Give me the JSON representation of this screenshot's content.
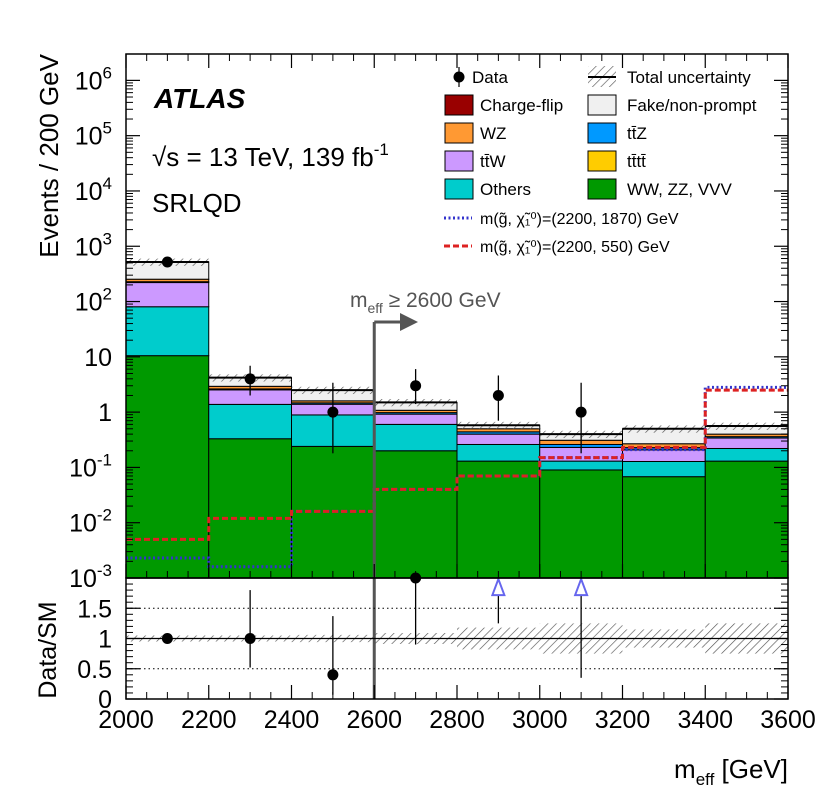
{
  "chart_data": {
    "type": "bar",
    "stacked": true,
    "log_y": true,
    "experiment": "ATLAS",
    "energy_label": "√s = 13 TeV, 139 fb",
    "energy_sup": "-1",
    "region": "SRLQD",
    "xlabel_main": "m",
    "xlabel_sub": "eff",
    "xlabel_unit": " [GeV]",
    "ylabel": "Events / 200 GeV",
    "ratio_ylabel": "Data/SM",
    "bin_edges": [
      2000,
      2200,
      2400,
      2600,
      2800,
      3000,
      3200,
      3400,
      3600
    ],
    "x_ticks": [
      "2000",
      "2200",
      "2400",
      "2600",
      "2800",
      "3000",
      "3200",
      "3400",
      "3600"
    ],
    "ylim": [
      0.001,
      3000000
    ],
    "y_ticks": [
      {
        "v": 0.001,
        "base": "10",
        "exp": "-3"
      },
      {
        "v": 0.01,
        "base": "10",
        "exp": "-2"
      },
      {
        "v": 0.1,
        "base": "10",
        "exp": "-1"
      },
      {
        "v": 1,
        "base": "1",
        "exp": ""
      },
      {
        "v": 10,
        "base": "10",
        "exp": ""
      },
      {
        "v": 100,
        "base": "10",
        "exp": "2"
      },
      {
        "v": 1000,
        "base": "10",
        "exp": "3"
      },
      {
        "v": 10000,
        "base": "10",
        "exp": "4"
      },
      {
        "v": 100000,
        "base": "10",
        "exp": "5"
      },
      {
        "v": 1000000,
        "base": "10",
        "exp": "6"
      }
    ],
    "stack": [
      {
        "name": "WW, ZZ, VVV",
        "color": "#009900",
        "values": [
          10.5,
          0.33,
          0.24,
          0.2,
          0.13,
          0.09,
          0.068,
          0.13
        ]
      },
      {
        "name": "Others",
        "color": "#00cccc",
        "values": [
          70,
          1.05,
          0.65,
          0.4,
          0.13,
          0.04,
          0.06,
          0.09
        ]
      },
      {
        "name": "tt̄tt̄",
        "color": "#ffcc00",
        "values": [
          0,
          0,
          0,
          0,
          0,
          0,
          0,
          0
        ]
      },
      {
        "name": "tt̄W",
        "color": "#cc99ff",
        "values": [
          140,
          1.15,
          0.5,
          0.32,
          0.14,
          0.1,
          0.08,
          0.12
        ]
      },
      {
        "name": "tt̄Z",
        "color": "#0099ff",
        "values": [
          8,
          0.1,
          0.08,
          0.06,
          0.04,
          0.03,
          0.02,
          0.02
        ]
      },
      {
        "name": "WZ",
        "color": "#ff9933",
        "values": [
          25,
          0.3,
          0.13,
          0.1,
          0.06,
          0.05,
          0.04,
          0.04
        ]
      },
      {
        "name": "Charge-flip",
        "color": "#990000",
        "values": [
          0,
          0,
          0,
          0,
          0,
          0,
          0,
          0
        ]
      },
      {
        "name": "Fake/non-prompt",
        "color": "#f0f0f0",
        "values": [
          266.5,
          1.27,
          0.9,
          0.42,
          0.08,
          0.09,
          0.23,
          0.16
        ]
      }
    ],
    "total": [
      520,
      4.2,
      2.5,
      1.5,
      0.58,
      0.4,
      0.5,
      0.56
    ],
    "data_points": [
      {
        "x": 2100,
        "y": 520,
        "up": 0,
        "down": 0
      },
      {
        "x": 2300,
        "y": 4,
        "up": 2.9,
        "down": 2
      },
      {
        "x": 2500,
        "y": 1,
        "up": 2.4,
        "down": 0.82
      },
      {
        "x": 2700,
        "y": 3,
        "up": 3,
        "down": 1.6
      },
      {
        "x": 2900,
        "y": 2,
        "up": 2.6,
        "down": 1.3
      },
      {
        "x": 3100,
        "y": 1,
        "up": 2.4,
        "down": 0.82
      }
    ],
    "signal": [
      {
        "name": "m(g̃, χ̃₁⁰)=(2200, 1870) GeV",
        "color": "#3333cc",
        "dash": "2,2.5",
        "values": [
          0.0023,
          0.0016,
          0.016,
          0.04,
          0.07,
          0.15,
          0.21,
          2.8
        ]
      },
      {
        "name": "m(g̃, χ̃₁⁰)=(2200, 550) GeV",
        "color": "#dd2222",
        "dash": "6,3",
        "values": [
          0.005,
          0.012,
          0.016,
          0.04,
          0.07,
          0.15,
          0.23,
          2.5
        ]
      }
    ],
    "cut_label": "m",
    "cut_label_sub": "eff",
    "cut_label_rest": " ≥ 2600 GeV",
    "cut_x": 2600,
    "ratio": {
      "ylim": [
        0,
        2
      ],
      "y_ticks": [
        "0",
        "0.5",
        "1",
        "1.5"
      ],
      "points": [
        {
          "x": 2100,
          "y": 1.0,
          "up": 0,
          "down": 0,
          "arrow": false
        },
        {
          "x": 2300,
          "y": 1.0,
          "up": 0.8,
          "down": 0.48,
          "arrow": false
        },
        {
          "x": 2500,
          "y": 0.4,
          "up": 0.97,
          "down": 0.33,
          "arrow": false
        },
        {
          "x": 2700,
          "y": 2.0,
          "up": 0,
          "down": 1.1,
          "arrow": false
        },
        {
          "x": 2900,
          "y": 1.85,
          "up": 0,
          "down": 0.6,
          "arrow": true
        },
        {
          "x": 3100,
          "y": 1.85,
          "up": 0,
          "down": 1.5,
          "arrow": true
        }
      ],
      "uncertainty": [
        0.05,
        0.05,
        0.06,
        0.09,
        0.18,
        0.25,
        0.15,
        0.25
      ]
    },
    "legend": {
      "data": "Data",
      "total_unc": "Total uncertainty",
      "entries_left": [
        "Charge-flip",
        "WZ",
        "tt̄W",
        "Others"
      ],
      "entries_right": [
        "Fake/non-prompt",
        "tt̄Z",
        "tt̄tt̄",
        "WW, ZZ, VVV"
      ]
    }
  }
}
